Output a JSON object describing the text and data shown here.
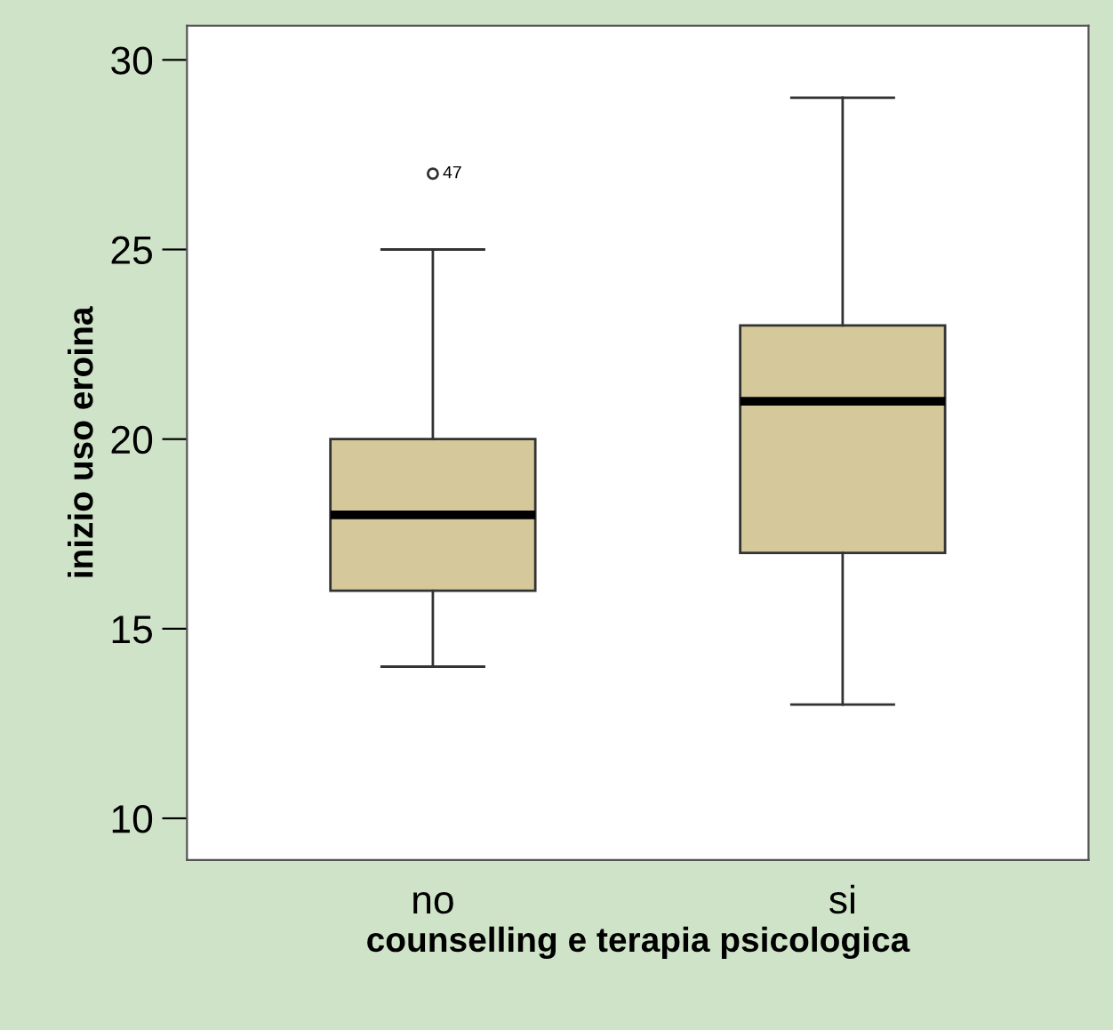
{
  "chart_data": {
    "type": "box",
    "xlabel": "counselling e terapia psicologica",
    "ylabel": "inizio uso eroina",
    "categories": [
      "no",
      "si"
    ],
    "boxes": [
      {
        "low": 14,
        "q1": 16,
        "median": 18,
        "q3": 20,
        "high": 25,
        "outliers": [
          27
        ]
      },
      {
        "low": 13,
        "q1": 17,
        "median": 21,
        "q3": 23,
        "high": 29
      }
    ],
    "color": "#d5c99b",
    "ylim": [
      8.9,
      30.9
    ],
    "yticks": [
      10,
      15,
      20,
      25,
      30
    ],
    "annotations": [
      "47"
    ],
    "grid": false
  }
}
